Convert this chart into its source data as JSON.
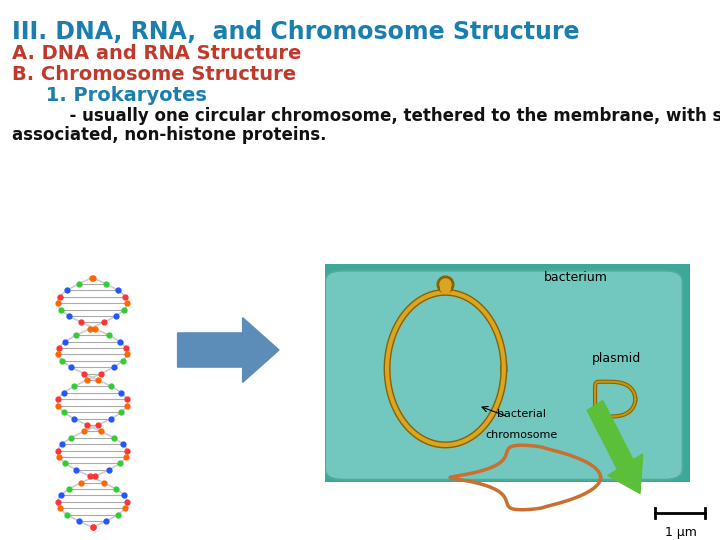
{
  "title": "III. DNA, RNA,  and Chromosome Structure",
  "title_color": "#1A7FAF",
  "line2": "A. DNA and RNA Structure",
  "line2_color": "#C0392B",
  "line3": "B. Chromosome Structure",
  "line3_color": "#C0392B",
  "line4": "     1. Prokaryotes",
  "line4_color": "#1A7FAF",
  "body_line1": "          - usually one circular chromosome, tethered to the membrane, with some",
  "body_line2": "associated, non-histone proteins.",
  "body_color": "#111111",
  "background_color": "#FFFFFF",
  "title_fontsize": 17,
  "sub_fontsize": 14,
  "body_fontsize": 12,
  "arrow_color": "#5B8DB8",
  "dna_bg": "#000000",
  "teal_outer": "#3BA89A",
  "teal_inner": "#6FC9BE",
  "chrom_color": "#B8860B",
  "chrom_color2": "#DAA520",
  "micro_bg": "#2A3B15",
  "micro_chrom": "#C87030",
  "green_arrow": "#5CBF3A",
  "scale_bar_color": "#000000"
}
